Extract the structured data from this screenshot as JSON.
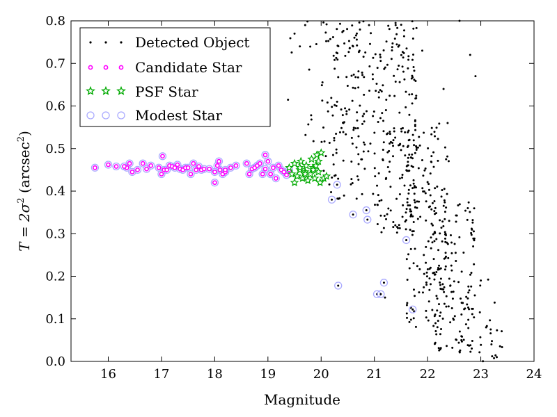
{
  "chart_data": {
    "type": "scatter",
    "xlabel": "Magnitude",
    "ylabel_main": "T = 2σ",
    "ylabel_unit": "arcsec",
    "xlim": [
      15.3,
      24
    ],
    "ylim": [
      0.0,
      0.8
    ],
    "x_ticks": [
      "16",
      "17",
      "18",
      "19",
      "20",
      "21",
      "22",
      "23",
      "24"
    ],
    "y_ticks": [
      "0.0",
      "0.1",
      "0.2",
      "0.3",
      "0.4",
      "0.5",
      "0.6",
      "0.7",
      "0.8"
    ],
    "legend_position": "top-left",
    "grid": false,
    "series": [
      {
        "name": "Detected Object",
        "marker": "dot",
        "color": "#000000",
        "generated_cloud": [
          {
            "x": [
              19.3,
              20.0
            ],
            "y": [
              0.45,
              0.8
            ],
            "count": 12
          },
          {
            "x": [
              20.0,
              21.0
            ],
            "y": [
              0.38,
              0.8
            ],
            "count": 150
          },
          {
            "x": [
              21.0,
              21.8
            ],
            "y": [
              0.3,
              0.8
            ],
            "count": 190
          },
          {
            "x": [
              21.6,
              22.4
            ],
            "y": [
              0.08,
              0.58
            ],
            "count": 170
          },
          {
            "x": [
              22.1,
              22.9
            ],
            "y": [
              0.02,
              0.38
            ],
            "count": 140
          },
          {
            "x": [
              22.7,
              23.4
            ],
            "y": [
              0.0,
              0.2
            ],
            "count": 25
          }
        ],
        "x": [
          19.5,
          19.6,
          19.7,
          20.3,
          20.6,
          20.9,
          21.4,
          21.9,
          22.6,
          22.8,
          22.9,
          23.0,
          23.1,
          23.2,
          23.3,
          22.3,
          21.2
        ],
        "y": [
          0.77,
          0.74,
          0.79,
          0.61,
          0.74,
          0.79,
          0.79,
          0.73,
          0.8,
          0.72,
          0.67,
          0.19,
          0.08,
          0.04,
          0.01,
          0.64,
          0.15
        ]
      },
      {
        "name": "Candidate Star",
        "marker": "small-circle",
        "color": "#ff00ff",
        "x": [
          15.75,
          16.0,
          16.15,
          16.35,
          16.4,
          16.45,
          16.55,
          16.65,
          16.72,
          16.8,
          16.95,
          17.0,
          17.02,
          17.05,
          17.15,
          17.2,
          17.25,
          17.3,
          17.35,
          17.4,
          17.45,
          17.5,
          17.55,
          17.6,
          17.65,
          17.7,
          17.75,
          17.8,
          17.9,
          18.0,
          18.05,
          18.08,
          18.1,
          18.15,
          18.2,
          18.3,
          18.4,
          18.6,
          18.65,
          18.7,
          18.75,
          18.8,
          18.85,
          18.9,
          18.95,
          19.0,
          19.05,
          19.1,
          19.15,
          19.2,
          19.25,
          19.3,
          19.35,
          19.4,
          18.2,
          18.0,
          17.1,
          16.3,
          19.05,
          18.95
        ],
        "y": [
          0.455,
          0.462,
          0.458,
          0.455,
          0.465,
          0.445,
          0.45,
          0.465,
          0.452,
          0.46,
          0.455,
          0.44,
          0.482,
          0.45,
          0.46,
          0.458,
          0.455,
          0.462,
          0.452,
          0.45,
          0.455,
          0.455,
          0.44,
          0.465,
          0.45,
          0.458,
          0.45,
          0.452,
          0.452,
          0.42,
          0.46,
          0.47,
          0.45,
          0.44,
          0.445,
          0.455,
          0.46,
          0.465,
          0.44,
          0.452,
          0.455,
          0.46,
          0.465,
          0.44,
          0.452,
          0.47,
          0.44,
          0.455,
          0.43,
          0.46,
          0.45,
          0.445,
          0.438,
          0.45,
          0.45,
          0.445,
          0.45,
          0.458,
          0.44,
          0.485
        ]
      },
      {
        "name": "PSF Star",
        "marker": "star",
        "color": "#00aa00",
        "x": [
          19.4,
          19.45,
          19.5,
          19.55,
          19.6,
          19.62,
          19.65,
          19.7,
          19.72,
          19.75,
          19.8,
          19.82,
          19.85,
          19.88,
          19.9,
          19.92,
          19.95,
          19.98,
          20.0,
          20.05,
          20.1,
          19.5,
          19.6,
          19.7,
          19.85,
          19.95
        ],
        "y": [
          0.455,
          0.44,
          0.465,
          0.435,
          0.45,
          0.47,
          0.43,
          0.445,
          0.46,
          0.425,
          0.44,
          0.475,
          0.455,
          0.43,
          0.46,
          0.485,
          0.445,
          0.42,
          0.49,
          0.43,
          0.435,
          0.42,
          0.455,
          0.44,
          0.45,
          0.47
        ]
      },
      {
        "name": "Modest Star",
        "marker": "open-circle",
        "color": "#aaaaff",
        "x": [
          20.2,
          20.3,
          20.6,
          20.85,
          20.87,
          20.32,
          21.05,
          21.12,
          21.18,
          21.6,
          21.72
        ],
        "y": [
          0.38,
          0.415,
          0.345,
          0.355,
          0.333,
          0.178,
          0.158,
          0.158,
          0.185,
          0.285,
          0.122
        ]
      }
    ]
  }
}
